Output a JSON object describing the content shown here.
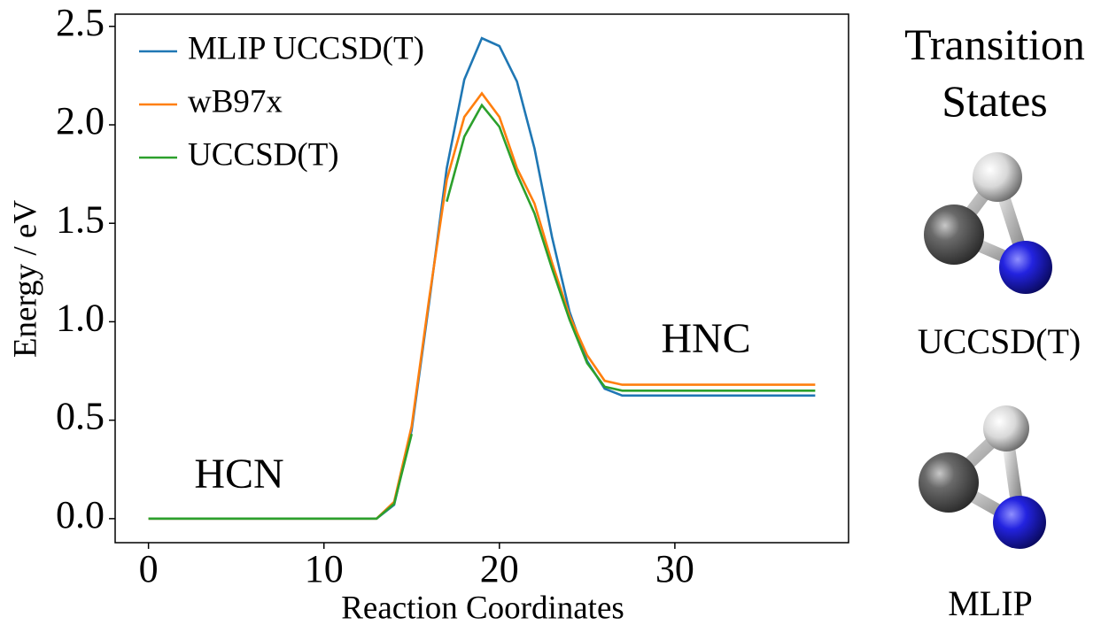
{
  "chart_data": {
    "type": "line",
    "xlabel": "Reaction Coordinates",
    "ylabel": "Energy / eV",
    "x": [
      0,
      1,
      2,
      3,
      4,
      5,
      6,
      7,
      8,
      9,
      10,
      11,
      12,
      13,
      14,
      15,
      16,
      17,
      18,
      19,
      20,
      21,
      22,
      23,
      24,
      25,
      26,
      27,
      28,
      29,
      30,
      31,
      32,
      33,
      34,
      35,
      36,
      37,
      38
    ],
    "series": [
      {
        "name": "MLIP UCCSD(T)",
        "color": "#1f77b4",
        "values": [
          0,
          0,
          0,
          0,
          0,
          0,
          0,
          0,
          0,
          0,
          0,
          0,
          0,
          0,
          0.07,
          0.45,
          1.1,
          1.78,
          2.23,
          2.44,
          2.4,
          2.22,
          1.88,
          1.43,
          1.05,
          0.8,
          0.66,
          0.625,
          0.625,
          0.625,
          0.625,
          0.625,
          0.625,
          0.625,
          0.625,
          0.625,
          0.625,
          0.625,
          0.625
        ]
      },
      {
        "name": "wB97x",
        "color": "#ff7f0e",
        "values": [
          0,
          0,
          0,
          0,
          0,
          0,
          0,
          0,
          0,
          0,
          0,
          0,
          0,
          0,
          0.085,
          0.47,
          1.12,
          1.72,
          2.04,
          2.16,
          2.04,
          1.78,
          1.6,
          1.3,
          1.03,
          0.83,
          0.7,
          0.68,
          0.68,
          0.68,
          0.68,
          0.68,
          0.68,
          0.68,
          0.68,
          0.68,
          0.68,
          0.68,
          0.68
        ]
      },
      {
        "name": "UCCSD(T)",
        "color": "#2ca02c",
        "values": [
          0,
          0,
          0,
          0,
          0,
          0,
          0,
          0,
          0,
          0,
          0,
          0,
          0,
          0,
          0.075,
          0.43,
          null,
          1.61,
          1.94,
          2.1,
          1.99,
          1.75,
          1.55,
          1.27,
          1.01,
          0.79,
          0.67,
          0.65,
          0.65,
          0.65,
          0.65,
          0.65,
          0.65,
          0.65,
          0.65,
          0.65,
          0.65,
          0.65,
          0.65
        ]
      }
    ],
    "xlim": [
      -1.9,
      39.9
    ],
    "xticks": [
      0,
      10,
      20,
      30
    ],
    "ylim": [
      -0.122,
      2.562
    ],
    "yticks": [
      {
        "value": 0,
        "label": "0.0"
      },
      0.5,
      {
        "value": 1,
        "label": "1.0"
      },
      1.5,
      {
        "value": 2,
        "label": "2.0"
      },
      2.5
    ],
    "legend": "upper left",
    "annotations": [
      "HCN",
      "HNC"
    ]
  },
  "panel": {
    "title": "Transition States",
    "labels": [
      "UCCSD(T)",
      "MLIP"
    ]
  }
}
